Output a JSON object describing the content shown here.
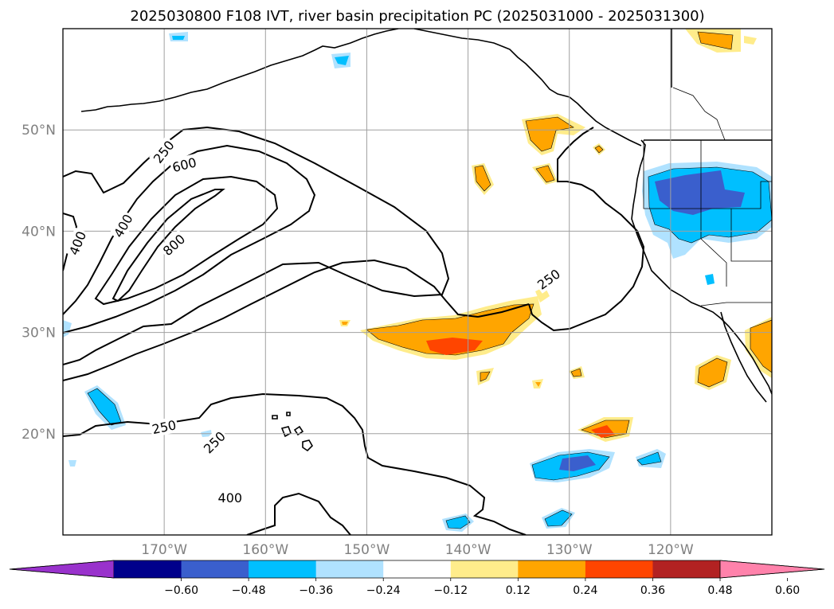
{
  "title": "2025030800 F108 IVT, river basin precipitation PC (2025031000 - 2025031300)",
  "map": {
    "lon_range": [
      -180,
      -110
    ],
    "lat_range": [
      10,
      60
    ],
    "lat_ticks": [
      {
        "value": 50,
        "label": "50°N"
      },
      {
        "value": 40,
        "label": "40°N"
      },
      {
        "value": 30,
        "label": "30°N"
      },
      {
        "value": 20,
        "label": "20°N"
      }
    ],
    "lon_ticks": [
      {
        "value": -170,
        "label": "170°W"
      },
      {
        "value": -160,
        "label": "160°W"
      },
      {
        "value": -150,
        "label": "150°W"
      },
      {
        "value": -140,
        "label": "140°W"
      },
      {
        "value": -130,
        "label": "130°W"
      },
      {
        "value": -120,
        "label": "120°W"
      }
    ],
    "gridlines": true
  },
  "ivt_contours": {
    "levels": [
      250,
      400,
      600,
      800
    ],
    "labels": [
      {
        "text": "250",
        "lon": -170,
        "lat": 47.8,
        "angle": -52
      },
      {
        "text": "600",
        "lon": -168,
        "lat": 46.5,
        "angle": -14
      },
      {
        "text": "400",
        "lon": -174,
        "lat": 40.5,
        "angle": -60
      },
      {
        "text": "400",
        "lon": -178.5,
        "lat": 38.8,
        "angle": -68
      },
      {
        "text": "800",
        "lon": -169,
        "lat": 38.6,
        "angle": -42
      },
      {
        "text": "250",
        "lon": -132,
        "lat": 35.2,
        "angle": -36
      },
      {
        "text": "250",
        "lon": -170,
        "lat": 20.6,
        "angle": -12
      },
      {
        "text": "250",
        "lon": -165,
        "lat": 19.1,
        "angle": -45
      },
      {
        "text": "400",
        "lon": -163.5,
        "lat": 13.6,
        "angle": 0
      }
    ]
  },
  "colorbar": {
    "colors": [
      "#9932cc",
      "#00008b",
      "#3a5fcd",
      "#00bfff",
      "#b0e2ff",
      "#ffffff",
      "#ffec8b",
      "#ffa500",
      "#ff4500",
      "#b22222",
      "#ff82ab"
    ],
    "tick_labels": [
      "−0.60",
      "−0.48",
      "−0.36",
      "−0.24",
      "−0.12",
      "0.12",
      "0.24",
      "0.36",
      "0.48",
      "0.60"
    ]
  },
  "precip_pc_regions": [
    {
      "name": "gulf-of-alaska-orange",
      "sign": "positive"
    },
    {
      "name": "subtropical-band-orange-red",
      "sign": "positive"
    },
    {
      "name": "great-basin-blue",
      "sign": "negative"
    },
    {
      "name": "eastern-pacific-blue",
      "sign": "negative"
    }
  ]
}
